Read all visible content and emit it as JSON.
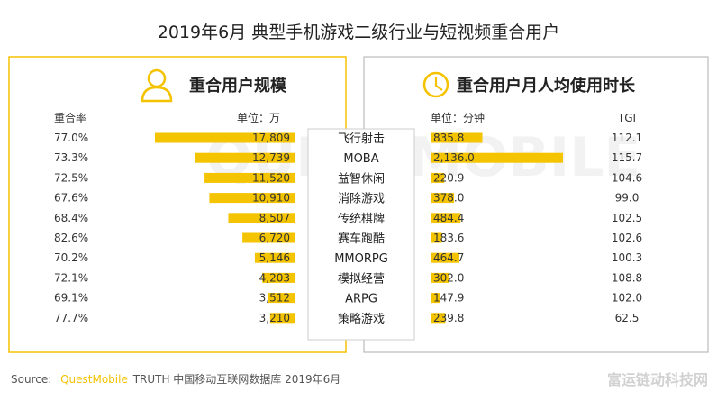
{
  "title": "2019年6月 典型手机游戏二级行业与短视频重合用户",
  "watermark": "QUESTMOBILE",
  "footer_brand": "富运链动科技网",
  "source": {
    "prefix": "Source:",
    "brand": "QuestMobile",
    "text": "TRUTH 中国移动互联网数据库 2019年6月"
  },
  "colors": {
    "accent": "#f5c200",
    "bar": "#f5c400",
    "text": "#333333",
    "panel_border_left": "#f5c200",
    "panel_border_right": "#bbbbbb"
  },
  "left_panel": {
    "icon": "user-icon",
    "heading": "重合用户规模",
    "col_header_rate": "重合率",
    "unit": "单位：万"
  },
  "right_panel": {
    "icon": "clock-icon",
    "heading": "重合用户月人均使用时长",
    "unit": "单位：分钟",
    "col_header_tgi": "TGI"
  },
  "chart_data": [
    {
      "type": "bar",
      "orientation": "horizontal",
      "direction": "right-to-left",
      "title": "重合用户规模",
      "unit": "万",
      "categories": [
        "飞行射击",
        "MOBA",
        "益智休闲",
        "消除游戏",
        "传统棋牌",
        "赛车跑酷",
        "MMORPG",
        "模拟经营",
        "ARPG",
        "策略游戏"
      ],
      "values": [
        17809,
        12739,
        11520,
        10910,
        8507,
        6720,
        5146,
        4203,
        3512,
        3210
      ],
      "value_labels": [
        "17,809",
        "12,739",
        "11,520",
        "10,910",
        "8,507",
        "6,720",
        "5,146",
        "4,203",
        "3,512",
        "3,210"
      ],
      "overlap_rate": [
        "77.0%",
        "73.3%",
        "72.5%",
        "67.6%",
        "68.4%",
        "82.6%",
        "70.2%",
        "72.1%",
        "69.1%",
        "77.7%"
      ],
      "xlim": [
        0,
        17809
      ]
    },
    {
      "type": "bar",
      "orientation": "horizontal",
      "title": "重合用户月人均使用时长",
      "unit": "分钟",
      "categories": [
        "飞行射击",
        "MOBA",
        "益智休闲",
        "消除游戏",
        "传统棋牌",
        "赛车跑酷",
        "MMORPG",
        "模拟经营",
        "ARPG",
        "策略游戏"
      ],
      "values": [
        835.8,
        2136.0,
        220.9,
        378.0,
        484.4,
        183.6,
        464.7,
        302.0,
        147.9,
        239.8
      ],
      "value_labels": [
        "835.8",
        "2,136.0",
        "220.9",
        "378.0",
        "484.4",
        "183.6",
        "464.7",
        "302.0",
        "147.9",
        "239.8"
      ],
      "tgi": [
        "112.1",
        "115.7",
        "104.6",
        "99.0",
        "102.5",
        "102.6",
        "100.3",
        "108.8",
        "102.0",
        "62.5"
      ],
      "xlim": [
        0,
        2136.0
      ]
    }
  ]
}
